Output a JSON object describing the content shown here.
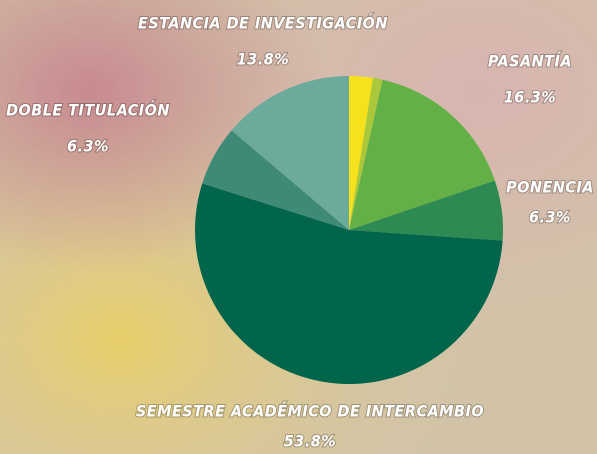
{
  "chart_data": {
    "type": "pie",
    "categories": [
      null,
      null,
      "PASANTÍA",
      "PONENCIA",
      "SEMESTRE ACADÉMICO DE INTERCAMBIO",
      "DOBLE TITULACIÓN",
      "ESTANCIA DE INVESTIGACIÓN"
    ],
    "values": [
      2.5,
      1.0,
      16.3,
      6.3,
      53.8,
      6.3,
      13.8
    ],
    "value_labels": [
      null,
      null,
      "16.3%",
      "6.3%",
      "53.8%",
      "6.3%",
      "13.8%"
    ],
    "colors": [
      "#f6e21c",
      "#a9c93a",
      "#63b047",
      "#2c8a52",
      "#00654a",
      "#3f8a77",
      "#6caa9c"
    ]
  }
}
